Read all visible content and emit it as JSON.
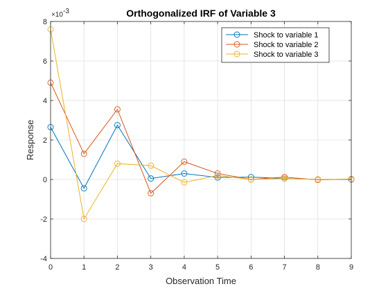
{
  "chart_data": {
    "type": "line",
    "title": "Orthogonalized IRF of Variable 3",
    "xlabel": "Observation Time",
    "ylabel": "Response",
    "y_exponent_base": "×10",
    "y_exponent_power": "-3",
    "xlim": [
      0,
      9
    ],
    "ylim": [
      -4,
      8
    ],
    "x_ticks": [
      0,
      1,
      2,
      3,
      4,
      5,
      6,
      7,
      8,
      9
    ],
    "y_ticks": [
      -4,
      -2,
      0,
      2,
      4,
      6,
      8
    ],
    "x_tick_labels": [
      "0",
      "1",
      "2",
      "3",
      "4",
      "5",
      "6",
      "7",
      "8",
      "9"
    ],
    "y_tick_labels": [
      "-4",
      "-2",
      "0",
      "2",
      "4",
      "6",
      "8"
    ],
    "grid": true,
    "legend_position": "top-right",
    "marker": "circle",
    "x": [
      0,
      1,
      2,
      3,
      4,
      5,
      6,
      7,
      8,
      9
    ],
    "series": [
      {
        "name": "Shock to variable 1",
        "color": "#0072BD",
        "values": [
          2.65,
          -0.45,
          2.75,
          0.05,
          0.3,
          0.1,
          0.12,
          0.05,
          0.0,
          0.0
        ]
      },
      {
        "name": "Shock to variable 2",
        "color": "#D95319",
        "values": [
          4.9,
          1.3,
          3.55,
          -0.7,
          0.9,
          0.3,
          0.0,
          0.12,
          -0.02,
          0.02
        ]
      },
      {
        "name": "Shock to variable 3",
        "color": "#EDB120",
        "values": [
          7.6,
          -2.0,
          0.8,
          0.7,
          -0.15,
          0.2,
          0.0,
          0.05,
          0.0,
          0.02
        ]
      }
    ]
  }
}
